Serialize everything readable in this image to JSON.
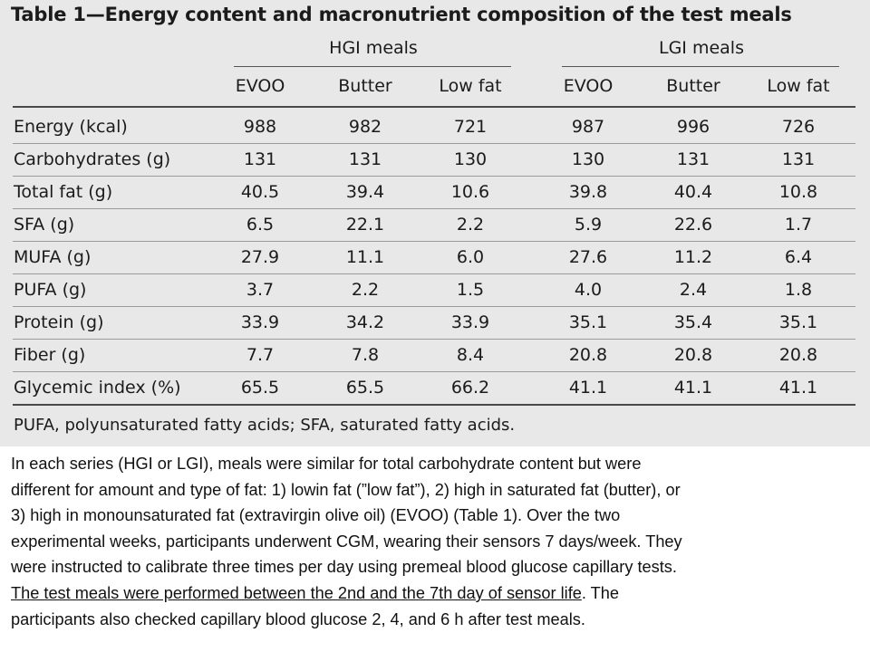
{
  "table": {
    "title": "Table 1—Energy content and macronutrient composition of the test meals",
    "groups": [
      "HGI meals",
      "LGI meals"
    ],
    "columns": [
      "EVOO",
      "Butter",
      "Low fat",
      "EVOO",
      "Butter",
      "Low fat"
    ],
    "rows": [
      {
        "label": "Energy (kcal)",
        "values": [
          "988",
          "982",
          "721",
          "987",
          "996",
          "726"
        ]
      },
      {
        "label": "Carbohydrates (g)",
        "values": [
          "131",
          "131",
          "130",
          "130",
          "131",
          "131"
        ]
      },
      {
        "label": "Total fat (g)",
        "values": [
          "40.5",
          "39.4",
          "10.6",
          "39.8",
          "40.4",
          "10.8"
        ]
      },
      {
        "label": "SFA (g)",
        "values": [
          "6.5",
          "22.1",
          "2.2",
          "5.9",
          "22.6",
          "1.7"
        ]
      },
      {
        "label": "MUFA (g)",
        "values": [
          "27.9",
          "11.1",
          "6.0",
          "27.6",
          "11.2",
          "6.4"
        ]
      },
      {
        "label": "PUFA (g)",
        "values": [
          "3.7",
          "2.2",
          "1.5",
          "4.0",
          "2.4",
          "1.8"
        ]
      },
      {
        "label": "Protein (g)",
        "values": [
          "33.9",
          "34.2",
          "33.9",
          "35.1",
          "35.4",
          "35.1"
        ]
      },
      {
        "label": "Fiber (g)",
        "values": [
          "7.7",
          "7.8",
          "8.4",
          "20.8",
          "20.8",
          "20.8"
        ]
      },
      {
        "label": "Glycemic index (%)",
        "values": [
          "65.5",
          "65.5",
          "66.2",
          "41.1",
          "41.1",
          "41.1"
        ]
      }
    ],
    "footnote": "PUFA, polyunsaturated fatty acids; SFA, saturated fatty acids."
  },
  "paragraph": {
    "lines": [
      "In each series (HGI or LGI), meals were similar for total carbohydrate content but were",
      "different for amount and type of fat: 1) lowin fat (”low fat”), 2) high in saturated fat (butter), or",
      "3) high in monounsaturated fat (extravirgin olive oil) (EVOO) (Table 1). Over the two",
      "experimental weeks, participants underwent CGM, wearing their sensors 7 days/week. They",
      "were instructed to calibrate three times per day using premeal blood glucose capillary tests."
    ],
    "underlined": "The test meals were performed between the 2nd and the 7th day of sensor life",
    "after_underlined": ". The",
    "last_line": "participants also checked capillary blood glucose 2, 4, and 6 h after test meals."
  }
}
